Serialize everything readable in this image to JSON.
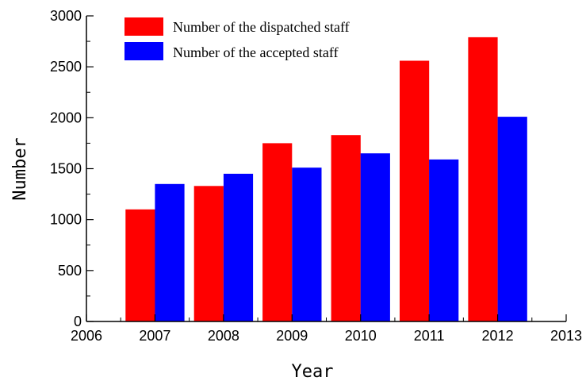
{
  "chart_data": {
    "type": "bar",
    "xlabel": "Year",
    "ylabel": "Number",
    "xlim": [
      2006,
      2013
    ],
    "ylim": [
      0,
      3000
    ],
    "x_ticks": [
      "2006",
      "2007",
      "2008",
      "2009",
      "2010",
      "2011",
      "2012",
      "2013"
    ],
    "y_ticks": [
      "0",
      "500",
      "1000",
      "1500",
      "2000",
      "2500",
      "3000"
    ],
    "categories": [
      "2007",
      "2008",
      "2009",
      "2010",
      "2011",
      "2012"
    ],
    "series": [
      {
        "name": "Number of the dispatched staff",
        "color": "#ff0000",
        "values": [
          1100,
          1330,
          1750,
          1830,
          2560,
          2790
        ]
      },
      {
        "name": "Number of the accepted staff",
        "color": "#0000ff",
        "values": [
          1350,
          1450,
          1510,
          1650,
          1590,
          2010
        ]
      }
    ],
    "legend_position": "top-left",
    "grid": false
  }
}
